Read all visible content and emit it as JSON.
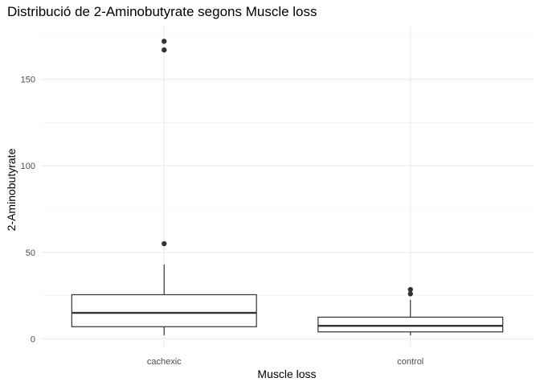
{
  "chart_data": {
    "type": "box",
    "title": "Distribució de 2-Aminobutyrate segons Muscle loss",
    "xlabel": "Muscle loss",
    "ylabel": "2-Aminobutyrate",
    "categories": [
      "cachexic",
      "control"
    ],
    "yticks": [
      0,
      50,
      100,
      150
    ],
    "ylim": [
      -4.5,
      181
    ],
    "grid": true,
    "series": [
      {
        "category": "cachexic",
        "whisker_low": 2,
        "q1": 7,
        "median": 15,
        "q3": 25.5,
        "whisker_high": 43,
        "outliers": [
          55,
          167,
          172
        ]
      },
      {
        "category": "control",
        "whisker_low": 2,
        "q1": 4,
        "median": 7.5,
        "q3": 12.5,
        "whisker_high": 22.5,
        "outliers": [
          26,
          28.5
        ]
      }
    ]
  }
}
